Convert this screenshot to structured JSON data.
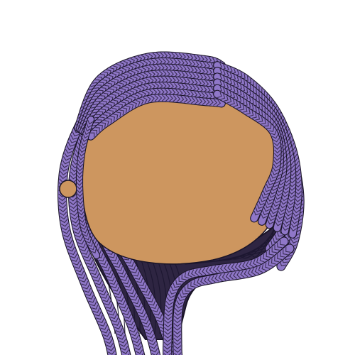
{
  "image": {
    "subject": "avatar-head-with-braided-hair",
    "colors": {
      "background": "#ffffff",
      "braid_fill": "#8f77c8",
      "braid_stitch": "#2b2140",
      "outline": "#1a1428",
      "underhair": "#2e2542",
      "underhair_line": "#1c1630",
      "skin": "#cd965f"
    }
  }
}
